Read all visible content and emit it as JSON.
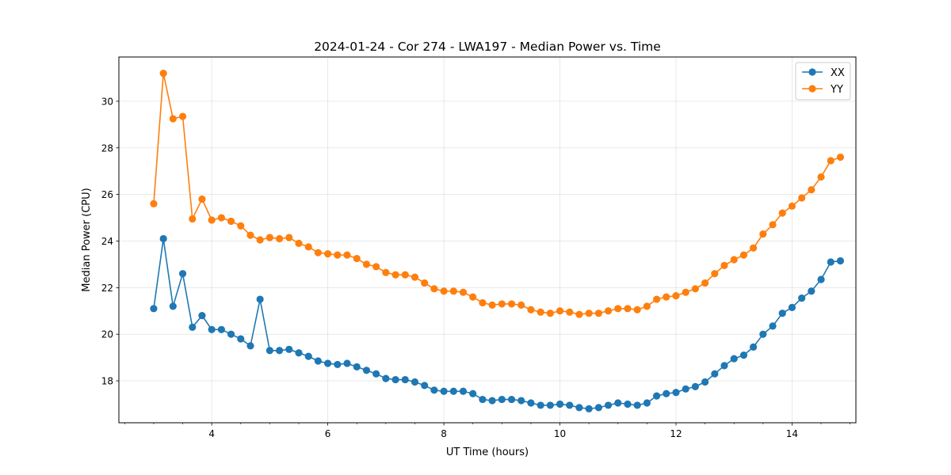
{
  "chart_data": {
    "type": "line",
    "title": "2024-01-24 - Cor 274 - LWA197 - Median Power vs. Time",
    "xlabel": "UT Time (hours)",
    "ylabel": "Median Power (CPU)",
    "xlim": [
      2.4,
      15.1
    ],
    "ylim": [
      16.2,
      31.9
    ],
    "xticks": [
      4,
      6,
      8,
      10,
      12,
      14
    ],
    "yticks": [
      18,
      20,
      22,
      24,
      26,
      28,
      30
    ],
    "xminor_step": 0.5,
    "grid": true,
    "legend_position": "top-right",
    "x": [
      3.0,
      3.167,
      3.333,
      3.5,
      3.667,
      3.833,
      4.0,
      4.167,
      4.333,
      4.5,
      4.667,
      4.833,
      5.0,
      5.167,
      5.333,
      5.5,
      5.667,
      5.833,
      6.0,
      6.167,
      6.333,
      6.5,
      6.667,
      6.833,
      7.0,
      7.167,
      7.333,
      7.5,
      7.667,
      7.833,
      8.0,
      8.167,
      8.333,
      8.5,
      8.667,
      8.833,
      9.0,
      9.167,
      9.333,
      9.5,
      9.667,
      9.833,
      10.0,
      10.167,
      10.333,
      10.5,
      10.667,
      10.833,
      11.0,
      11.167,
      11.333,
      11.5,
      11.667,
      11.833,
      12.0,
      12.167,
      12.333,
      12.5,
      12.667,
      12.833,
      13.0,
      13.167,
      13.333,
      13.5,
      13.667,
      13.833,
      14.0,
      14.167,
      14.333,
      14.5,
      14.667,
      14.833
    ],
    "series": [
      {
        "name": "XX",
        "color": "#1f77b4",
        "values": [
          21.1,
          24.1,
          21.2,
          22.6,
          20.3,
          20.8,
          20.2,
          20.2,
          20.0,
          19.8,
          19.5,
          21.5,
          19.3,
          19.3,
          19.35,
          19.2,
          19.05,
          18.85,
          18.75,
          18.7,
          18.75,
          18.6,
          18.45,
          18.3,
          18.1,
          18.05,
          18.05,
          17.95,
          17.8,
          17.6,
          17.55,
          17.55,
          17.55,
          17.45,
          17.2,
          17.15,
          17.2,
          17.2,
          17.15,
          17.05,
          16.95,
          16.95,
          17.0,
          16.95,
          16.85,
          16.8,
          16.85,
          16.95,
          17.05,
          17.0,
          16.95,
          17.05,
          17.35,
          17.45,
          17.5,
          17.65,
          17.75,
          17.95,
          18.3,
          18.65,
          18.95,
          19.1,
          19.45,
          20.0,
          20.35,
          20.9,
          21.15,
          21.55,
          21.85,
          22.35,
          23.1,
          23.15
        ]
      },
      {
        "name": "YY",
        "color": "#ff7f0e",
        "values": [
          25.6,
          31.2,
          29.25,
          29.35,
          24.95,
          25.8,
          24.9,
          25.0,
          24.85,
          24.65,
          24.25,
          24.05,
          24.15,
          24.1,
          24.15,
          23.9,
          23.75,
          23.5,
          23.45,
          23.4,
          23.4,
          23.25,
          23.0,
          22.9,
          22.65,
          22.55,
          22.55,
          22.45,
          22.2,
          21.95,
          21.85,
          21.85,
          21.8,
          21.6,
          21.35,
          21.25,
          21.3,
          21.3,
          21.25,
          21.05,
          20.95,
          20.9,
          21.0,
          20.95,
          20.85,
          20.9,
          20.9,
          21.0,
          21.1,
          21.1,
          21.05,
          21.2,
          21.5,
          21.6,
          21.65,
          21.8,
          21.95,
          22.2,
          22.6,
          22.95,
          23.2,
          23.4,
          23.7,
          24.3,
          24.7,
          25.2,
          25.5,
          25.85,
          26.2,
          26.75,
          27.45,
          27.6
        ]
      }
    ]
  }
}
